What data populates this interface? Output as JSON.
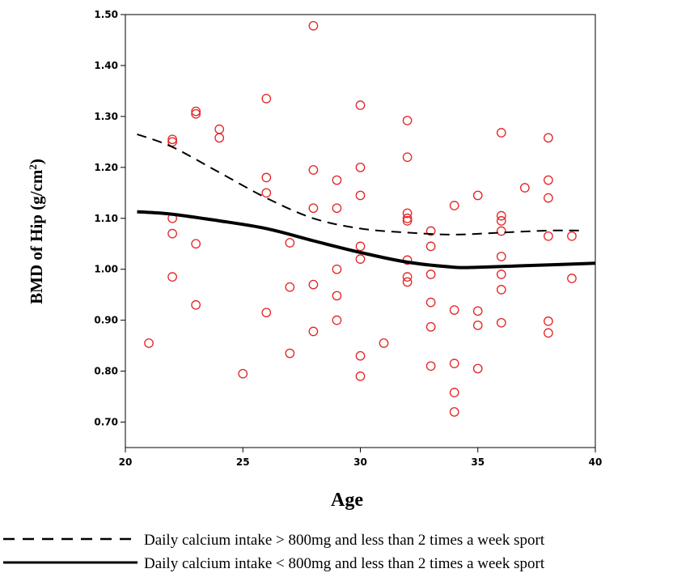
{
  "chart_data": {
    "type": "scatter",
    "xlabel": "Age",
    "ylabel": {
      "main": "BMD of Hip (g/cm",
      "sup": "2",
      "end": ")"
    },
    "xlim": [
      20,
      40
    ],
    "ylim": [
      0.65,
      1.5
    ],
    "x_ticks": [
      "20",
      "25",
      "30",
      "35",
      "40"
    ],
    "y_ticks": [
      "0.70",
      "0.80",
      "0.90",
      "1.00",
      "1.10",
      "1.20",
      "1.30",
      "1.40",
      "1.50"
    ],
    "point_color": "#e32222",
    "series": [
      {
        "name": "scatter",
        "style": "circles",
        "points": [
          [
            21,
            0.855
          ],
          [
            22,
            1.255
          ],
          [
            22,
            1.25
          ],
          [
            22,
            1.1
          ],
          [
            22,
            1.07
          ],
          [
            22,
            0.985
          ],
          [
            23,
            1.31
          ],
          [
            23,
            1.305
          ],
          [
            23,
            1.05
          ],
          [
            23,
            0.93
          ],
          [
            24,
            1.275
          ],
          [
            24,
            1.258
          ],
          [
            25,
            0.795
          ],
          [
            26,
            1.335
          ],
          [
            26,
            1.18
          ],
          [
            26,
            1.15
          ],
          [
            26,
            0.915
          ],
          [
            27,
            1.052
          ],
          [
            27,
            0.965
          ],
          [
            27,
            0.835
          ],
          [
            28,
            1.478
          ],
          [
            28,
            1.195
          ],
          [
            28,
            1.12
          ],
          [
            28,
            0.97
          ],
          [
            28,
            0.878
          ],
          [
            29,
            1.175
          ],
          [
            29,
            1.12
          ],
          [
            29,
            1.0
          ],
          [
            29,
            0.948
          ],
          [
            29,
            0.9
          ],
          [
            30,
            1.322
          ],
          [
            30,
            1.2
          ],
          [
            30,
            1.145
          ],
          [
            30,
            1.045
          ],
          [
            30,
            1.02
          ],
          [
            30,
            0.83
          ],
          [
            30,
            0.79
          ],
          [
            31,
            0.855
          ],
          [
            32,
            1.292
          ],
          [
            32,
            1.22
          ],
          [
            32,
            1.11
          ],
          [
            32,
            1.1
          ],
          [
            32,
            1.095
          ],
          [
            32,
            1.018
          ],
          [
            32,
            0.985
          ],
          [
            32,
            0.975
          ],
          [
            33,
            1.075
          ],
          [
            33,
            1.045
          ],
          [
            33,
            0.99
          ],
          [
            33,
            0.935
          ],
          [
            33,
            0.887
          ],
          [
            33,
            0.81
          ],
          [
            34,
            1.125
          ],
          [
            34,
            0.92
          ],
          [
            34,
            0.815
          ],
          [
            34,
            0.758
          ],
          [
            34,
            0.72
          ],
          [
            35,
            1.145
          ],
          [
            35,
            0.918
          ],
          [
            35,
            0.89
          ],
          [
            35,
            0.805
          ],
          [
            36,
            1.268
          ],
          [
            36,
            1.105
          ],
          [
            36,
            1.095
          ],
          [
            36,
            1.075
          ],
          [
            36,
            1.025
          ],
          [
            36,
            0.99
          ],
          [
            36,
            0.96
          ],
          [
            36,
            0.895
          ],
          [
            37,
            1.16
          ],
          [
            38,
            1.258
          ],
          [
            38,
            1.175
          ],
          [
            38,
            1.14
          ],
          [
            38,
            1.065
          ],
          [
            38,
            0.898
          ],
          [
            38,
            0.875
          ],
          [
            39,
            1.065
          ],
          [
            39,
            0.982
          ]
        ]
      },
      {
        "name": "Daily calcium intake > 800mg and less than 2 times a week sport",
        "style": "dashed",
        "points": [
          [
            20.5,
            1.265
          ],
          [
            22,
            1.24
          ],
          [
            24,
            1.19
          ],
          [
            26,
            1.14
          ],
          [
            28,
            1.1
          ],
          [
            30,
            1.08
          ],
          [
            32,
            1.072
          ],
          [
            34,
            1.068
          ],
          [
            36,
            1.072
          ],
          [
            38,
            1.076
          ],
          [
            39.5,
            1.076
          ]
        ]
      },
      {
        "name": "Daily calcium intake < 800mg and less than 2 times a week sport",
        "style": "solid",
        "points": [
          [
            20.5,
            1.113
          ],
          [
            22,
            1.108
          ],
          [
            24,
            1.095
          ],
          [
            26,
            1.08
          ],
          [
            28,
            1.056
          ],
          [
            30,
            1.033
          ],
          [
            32,
            1.014
          ],
          [
            34,
            1.004
          ],
          [
            35,
            1.004
          ],
          [
            37,
            1.007
          ],
          [
            40,
            1.012
          ]
        ]
      }
    ],
    "legend": [
      {
        "label": "Daily calcium intake > 800mg and less than 2 times a week sport",
        "style": "dashed"
      },
      {
        "label": "Daily calcium intake < 800mg and less than 2 times a week sport",
        "style": "solid"
      }
    ]
  }
}
